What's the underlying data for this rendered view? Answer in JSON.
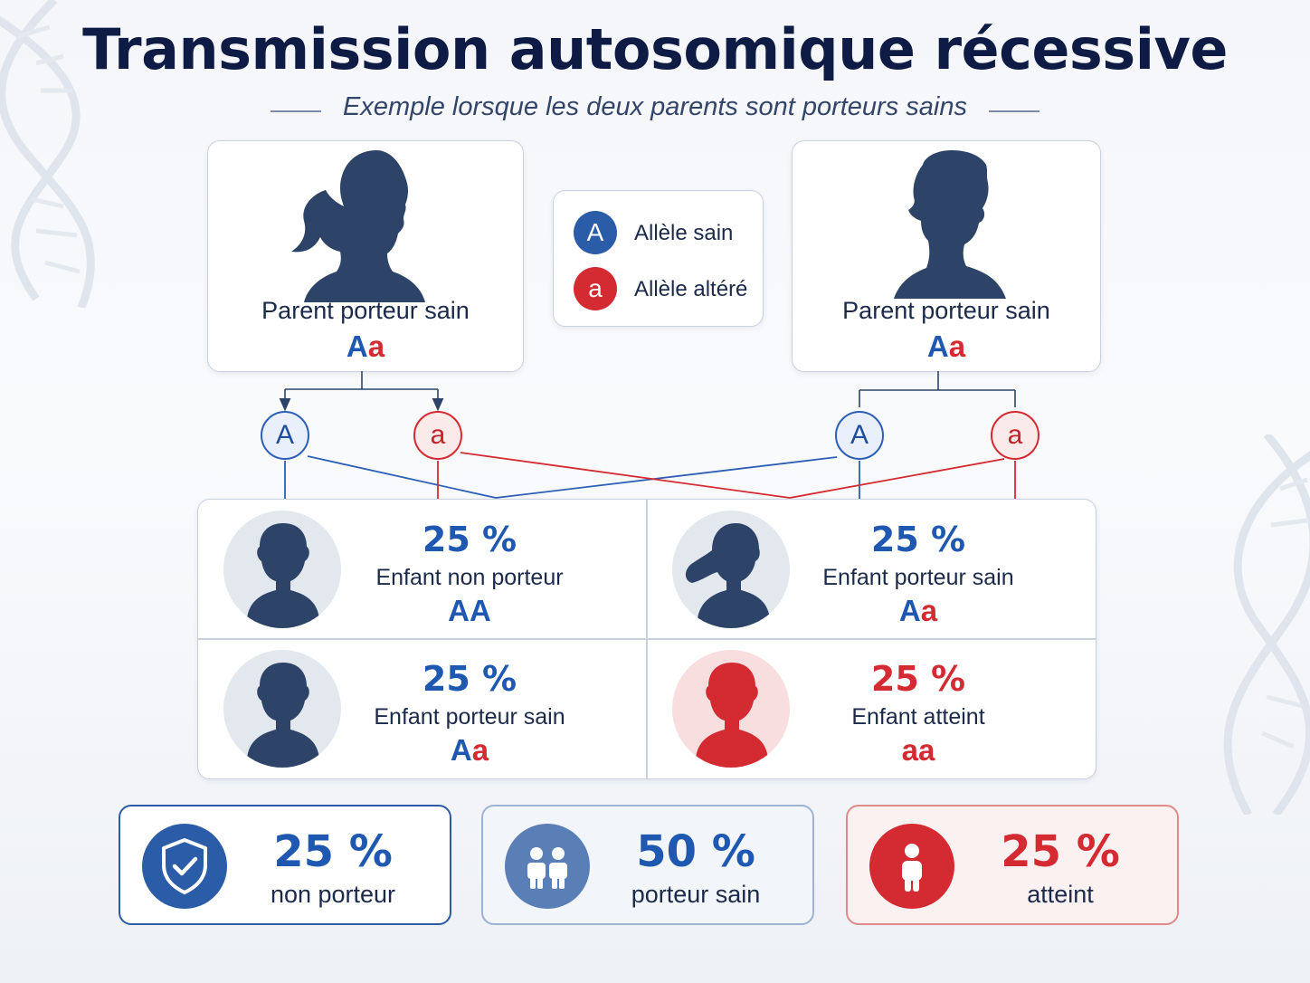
{
  "title": "Transmission autosomique récessive",
  "subtitle": "Exemple lorsque les deux parents sont porteurs sains",
  "colors": {
    "healthy_blue": "#1f58b0",
    "altered_red": "#d42a32",
    "navy": "#2d4468"
  },
  "parents": [
    {
      "label": "Parent porteur sain",
      "allele1": "A",
      "allele2": "a",
      "icon": "female-silhouette-icon"
    },
    {
      "label": "Parent porteur sain",
      "allele1": "A",
      "allele2": "a",
      "icon": "male-silhouette-icon"
    }
  ],
  "legend": [
    {
      "symbol": "A",
      "label": "Allèle sain",
      "color": "#2a5ca8"
    },
    {
      "symbol": "a",
      "label": "Allèle altéré",
      "color": "#d42a32"
    }
  ],
  "gametes": {
    "healthy": "A",
    "altered": "a"
  },
  "children": [
    {
      "percent": "25 %",
      "label": "Enfant non porteur",
      "allele1": "A",
      "allele2": "A",
      "icon": "boy-silhouette-icon"
    },
    {
      "percent": "25 %",
      "label": "Enfant porteur sain",
      "allele1": "A",
      "allele2": "a",
      "icon": "girl-silhouette-icon"
    },
    {
      "percent": "25 %",
      "label": "Enfant porteur sain",
      "allele1": "A",
      "allele2": "a",
      "icon": "boy-silhouette-icon"
    },
    {
      "percent": "25 %",
      "label": "Enfant atteint",
      "allele1": "a",
      "allele2": "a",
      "icon": "affected-child-icon"
    }
  ],
  "summary": [
    {
      "percent": "25 %",
      "label": "non porteur",
      "icon": "shield-check-icon"
    },
    {
      "percent": "50 %",
      "label": "porteur sain",
      "icon": "two-children-icon"
    },
    {
      "percent": "25 %",
      "label": "atteint",
      "icon": "child-person-icon"
    }
  ]
}
